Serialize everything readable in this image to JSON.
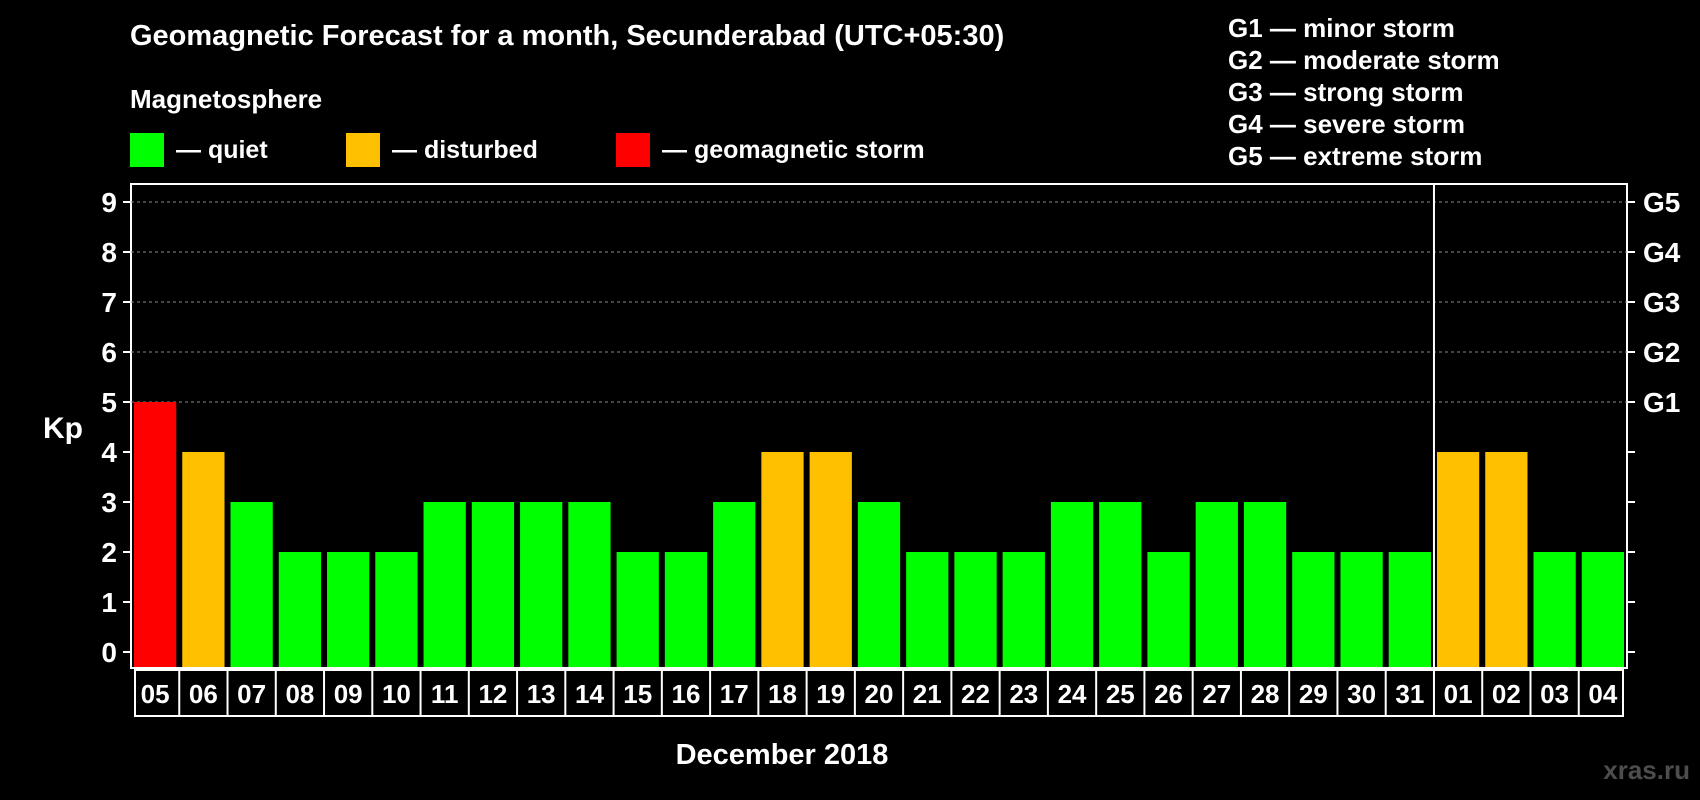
{
  "chart_data": {
    "type": "bar",
    "title": "Geomagnetic Forecast for a month, Secunderabad (UTC+05:30)",
    "subtitle": "Magnetosphere",
    "xlabel": "December 2018",
    "ylabel": "Kp",
    "ylim": [
      0,
      9
    ],
    "yticks": [
      "0",
      "1",
      "2",
      "3",
      "4",
      "5",
      "6",
      "7",
      "8",
      "9"
    ],
    "right_ticks": [
      {
        "value": 5,
        "label": "G1"
      },
      {
        "value": 6,
        "label": "G2"
      },
      {
        "value": 7,
        "label": "G3"
      },
      {
        "value": 8,
        "label": "G4"
      },
      {
        "value": 9,
        "label": "G5"
      }
    ],
    "categories": [
      "05",
      "06",
      "07",
      "08",
      "09",
      "10",
      "11",
      "12",
      "13",
      "14",
      "15",
      "16",
      "17",
      "18",
      "19",
      "20",
      "21",
      "22",
      "23",
      "24",
      "25",
      "26",
      "27",
      "28",
      "29",
      "30",
      "31",
      "01",
      "02",
      "03",
      "04"
    ],
    "values": [
      5,
      4,
      3,
      2,
      2,
      2,
      3,
      3,
      3,
      3,
      2,
      2,
      3,
      4,
      4,
      3,
      2,
      2,
      2,
      3,
      3,
      2,
      3,
      3,
      2,
      2,
      2,
      4,
      4,
      2,
      2
    ],
    "month_divider_after": "31",
    "legend": [
      {
        "label": "— quiet",
        "color": "#00ff00"
      },
      {
        "label": "— disturbed",
        "color": "#ffc000"
      },
      {
        "label": "— geomagnetic storm",
        "color": "#ff0000"
      }
    ],
    "thresholds": {
      "disturbed": 4,
      "storm": 5
    }
  },
  "scale_legend": [
    "G1 — minor storm",
    "G2 — moderate storm",
    "G3 — strong storm",
    "G4 — severe storm",
    "G5 — extreme storm"
  ],
  "watermark": "xras.ru"
}
